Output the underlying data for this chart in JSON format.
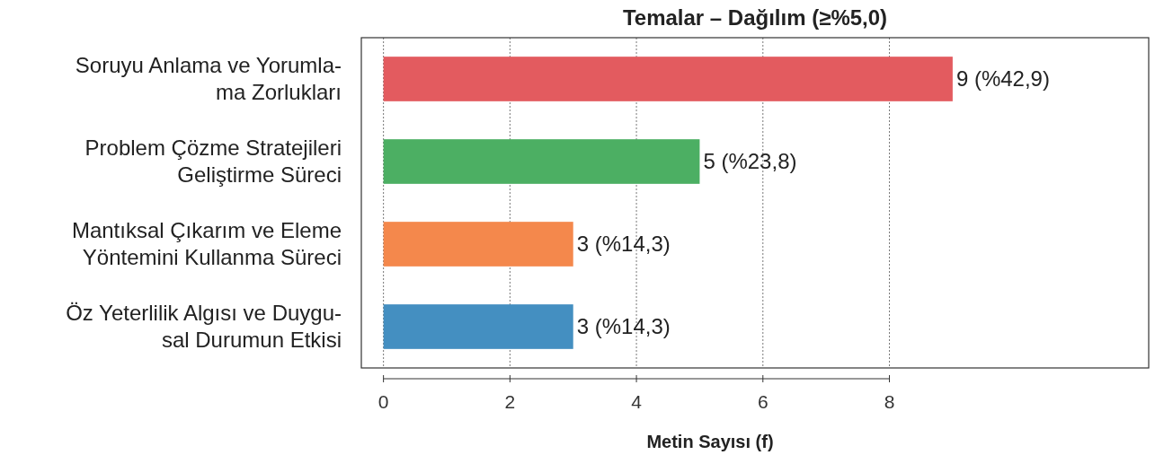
{
  "chart_data": {
    "type": "bar",
    "orientation": "horizontal",
    "title": "Temalar – Dağılım (≥%5,0)",
    "xlabel": "Metin Sayısı (f)",
    "categories": [
      "Soruyu Anlama ve Yorumla-\nma Zorlukları",
      "Problem Çözme Stratejileri\nGeliştirme Süreci",
      "Mantıksal Çıkarım ve Eleme\nYöntemini Kullanma Süreci",
      "Öz Yeterlilik Algısı ve Duygu-\nsal Durumun Etkisi"
    ],
    "values": [
      9,
      5,
      3,
      3
    ],
    "colors": [
      "#e35b5f",
      "#4caf63",
      "#f4884c",
      "#448fc1"
    ],
    "value_labels": [
      "9 (%42,9)",
      "5 (%23,8)",
      "3 (%14,3)",
      "3 (%14,3)"
    ],
    "xlim": [
      -0.35,
      12.1
    ],
    "xticks": [
      0,
      2,
      4,
      6,
      8
    ],
    "grid": "x"
  }
}
